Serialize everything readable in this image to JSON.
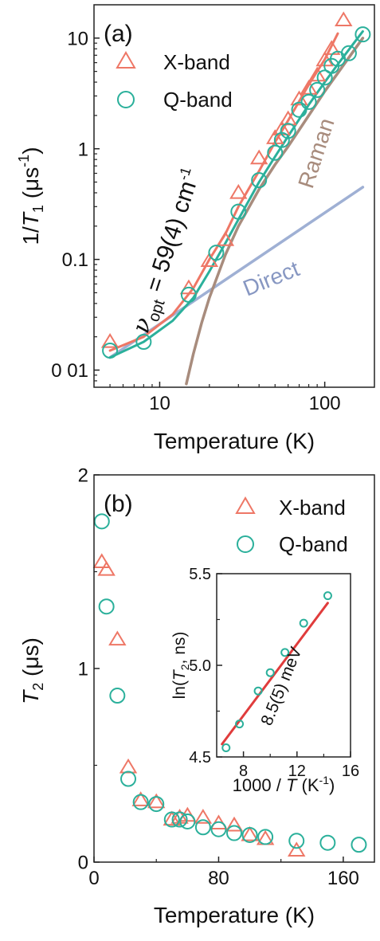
{
  "chart_data": [
    {
      "type": "scatter",
      "panel_label": "(a)",
      "xlabel": "Temperature (K)",
      "ylabel_parts": {
        "prefix": "1/",
        "italic": "T",
        "sub": "1",
        "unit": " (μs",
        "sup": "-1",
        "close": ")"
      },
      "x_scale": "log",
      "y_scale": "log",
      "xlim": [
        4,
        200
      ],
      "ylim": [
        0.007,
        20
      ],
      "x_ticks": [
        10,
        100
      ],
      "x_tick_labels": [
        "10",
        "100"
      ],
      "y_ticks": [
        0.01,
        0.1,
        1,
        10
      ],
      "y_tick_labels": [
        "0 01",
        "0.1",
        "1",
        "10"
      ],
      "legend_position": "top-left",
      "series": [
        {
          "name": "X-band",
          "marker": "triangle",
          "color": "#ee7766",
          "x": [
            5,
            15,
            20,
            25,
            30,
            40,
            50,
            55,
            60,
            70,
            80,
            90,
            100,
            110,
            130
          ],
          "y": [
            0.018,
            0.055,
            0.097,
            0.15,
            0.4,
            0.82,
            1.25,
            1.5,
            1.85,
            2.8,
            3.5,
            4.6,
            6.3,
            8.0,
            14.5
          ]
        },
        {
          "name": "Q-band",
          "marker": "circle",
          "color": "#2bb09b",
          "x": [
            5,
            8,
            15,
            22,
            30,
            40,
            50,
            55,
            60,
            70,
            80,
            90,
            100,
            110,
            120,
            140,
            170
          ],
          "y": [
            0.015,
            0.018,
            0.048,
            0.115,
            0.27,
            0.52,
            0.92,
            1.2,
            1.45,
            2.25,
            2.65,
            3.4,
            4.4,
            5.6,
            6.5,
            7.3,
            10.8
          ]
        }
      ],
      "fit_lines": [
        {
          "name": "X-band fit",
          "color": "#ee7766",
          "x": [
            5,
            8,
            12,
            16,
            20,
            25,
            30,
            40,
            50,
            60,
            80,
            100,
            120
          ],
          "y": [
            0.015,
            0.02,
            0.032,
            0.055,
            0.1,
            0.17,
            0.3,
            0.63,
            1.15,
            1.8,
            3.8,
            6.4,
            11
          ]
        },
        {
          "name": "Q-band fit",
          "color": "#2bb09b",
          "x": [
            5,
            8,
            12,
            16,
            20,
            25,
            30,
            40,
            50,
            60,
            80,
            100,
            120,
            150,
            170
          ],
          "y": [
            0.013,
            0.018,
            0.028,
            0.045,
            0.078,
            0.14,
            0.23,
            0.5,
            0.85,
            1.3,
            2.5,
            4.0,
            5.8,
            9.0,
            11.5
          ]
        }
      ],
      "component_lines": [
        {
          "label": "Direct",
          "color": "#9fb0d4",
          "x": [
            5,
            170
          ],
          "y": [
            0.013,
            0.45
          ]
        },
        {
          "label": "Raman",
          "color": "#a88c7d",
          "x": [
            14.5,
            16,
            18,
            20,
            25,
            30,
            40,
            50,
            60,
            80,
            100,
            130,
            170
          ],
          "y": [
            0.0075,
            0.014,
            0.027,
            0.045,
            0.11,
            0.2,
            0.43,
            0.72,
            1.05,
            2.0,
            3.3,
            5.7,
            10
          ]
        }
      ],
      "annotation": {
        "symbol": "ν",
        "sub": "opt",
        "text": " = 59(4) cm",
        "sup": "-1"
      }
    },
    {
      "type": "scatter",
      "panel_label": "(b)",
      "xlabel": "Temperature (K)",
      "ylabel_parts": {
        "italic": "T",
        "sub": "2",
        "unit": " (μs)"
      },
      "xlim": [
        0,
        180
      ],
      "ylim": [
        0,
        2
      ],
      "x_ticks": [
        0,
        80,
        160
      ],
      "x_tick_labels": [
        "0",
        "80",
        "160"
      ],
      "y_ticks": [
        0,
        1,
        2
      ],
      "y_tick_labels": [
        "0",
        "1",
        "2"
      ],
      "legend_position": "top-right",
      "series": [
        {
          "name": "X-band",
          "marker": "triangle",
          "color": "#ee7766",
          "x": [
            5,
            8,
            15,
            22,
            30,
            40,
            50,
            55,
            60,
            70,
            80,
            90,
            100,
            110,
            130
          ],
          "y": [
            1.55,
            1.51,
            1.15,
            0.49,
            0.32,
            0.31,
            0.22,
            0.23,
            0.24,
            0.23,
            0.2,
            0.19,
            0.14,
            0.12,
            0.06
          ]
        },
        {
          "name": "Q-band",
          "marker": "circle",
          "color": "#2bb09b",
          "x": [
            5,
            8,
            15,
            22,
            30,
            40,
            50,
            55,
            60,
            70,
            80,
            90,
            100,
            110,
            130,
            150,
            170
          ],
          "y": [
            1.76,
            1.32,
            0.86,
            0.43,
            0.31,
            0.3,
            0.22,
            0.22,
            0.21,
            0.18,
            0.17,
            0.15,
            0.14,
            0.13,
            0.11,
            0.1,
            0.09
          ]
        }
      ],
      "inset": {
        "xlabel": "1000 / T (K⁻¹)",
        "xlabel_parts": {
          "pre": "1000 / ",
          "italic": "T",
          "unit": " (K",
          "sup": "-1",
          "close": ")"
        },
        "ylabel_parts": {
          "pre": "ln(",
          "italic": "T",
          "sub": "2",
          "unit": ", ns)"
        },
        "xlim": [
          6,
          16
        ],
        "ylim": [
          4.5,
          5.5
        ],
        "x_ticks": [
          8,
          12,
          16
        ],
        "x_tick_labels": [
          "8",
          "12",
          "16"
        ],
        "y_ticks": [
          4.5,
          5.0,
          5.5
        ],
        "y_tick_labels": [
          "4.5",
          "5.0",
          "5.5"
        ],
        "points": {
          "color": "#2bb09b",
          "x": [
            6.7,
            7.7,
            9.1,
            10.0,
            11.1,
            12.5,
            14.3
          ],
          "y": [
            4.55,
            4.68,
            4.86,
            4.96,
            5.07,
            5.23,
            5.38
          ]
        },
        "fit": {
          "color": "#e03c3c",
          "x": [
            6.4,
            14.3
          ],
          "y": [
            4.57,
            5.34
          ]
        },
        "annotation": "8.5(5) meV"
      }
    }
  ]
}
